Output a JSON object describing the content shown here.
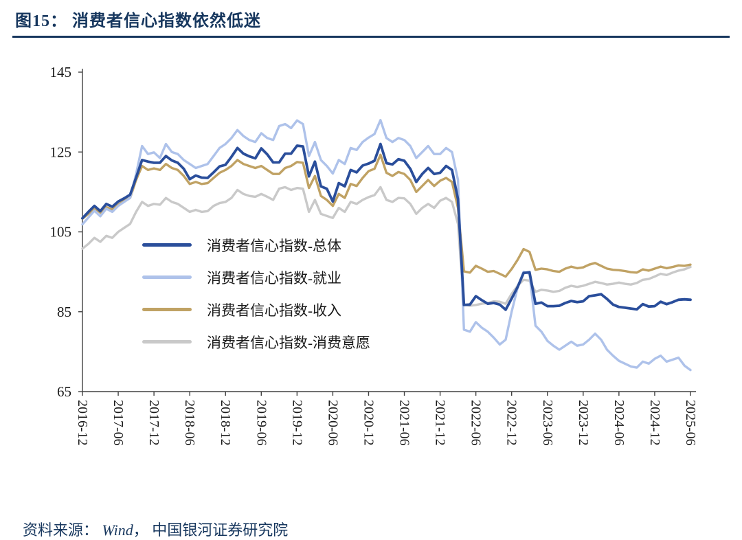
{
  "page": {
    "title": "图15： 消费者信心指数依然低迷",
    "source_prefix": "资料来源： ",
    "source_wind": "Wind",
    "source_suffix": "， 中国银河证券研究院",
    "colors": {
      "navy": "#17375E",
      "axis": "#404040",
      "text": "#1A1A1A"
    }
  },
  "chart_data": {
    "type": "line",
    "title": "消费者信心指数依然低迷",
    "grid": false,
    "legend_position": "inside-left",
    "ylim": [
      65,
      145
    ],
    "y_ticks": [
      145,
      125,
      105,
      85,
      65
    ],
    "x_tick_every_n_months": 6,
    "x_tick_labels": [
      "2016-12",
      "2017-06",
      "2017-12",
      "2018-06",
      "2018-12",
      "2019-06",
      "2019-12",
      "2020-06",
      "2020-12",
      "2021-06",
      "2021-12",
      "2022-06",
      "2022-12",
      "2023-06",
      "2023-12",
      "2024-06",
      "2024-12",
      "2025-06"
    ],
    "series": [
      {
        "key": "overall",
        "name": "消费者信心指数-总体",
        "color": "#2A4E9B",
        "width": 3.8,
        "values": [
          108.4,
          110.0,
          111.5,
          110.2,
          112.0,
          111.3,
          112.6,
          113.4,
          114.3,
          118.6,
          123.0,
          122.6,
          122.3,
          122.3,
          124.0,
          122.9,
          122.3,
          120.8,
          118.2,
          119.1,
          118.6,
          118.5,
          119.9,
          121.4,
          121.8,
          123.8,
          126.0,
          124.6,
          123.9,
          123.4,
          125.9,
          124.4,
          122.4,
          122.4,
          124.6,
          124.6,
          126.6,
          126.4,
          118.9,
          122.6,
          116.4,
          115.8,
          112.6,
          117.2,
          116.4,
          120.5,
          119.9,
          121.6,
          122.1,
          122.8,
          127.0,
          122.2,
          121.9,
          123.2,
          122.8,
          120.8,
          117.5,
          119.5,
          121.0,
          119.5,
          119.8,
          121.5,
          120.5,
          113.2,
          86.7,
          86.8,
          88.9,
          87.9,
          87.0,
          87.2,
          86.8,
          85.5,
          88.3,
          91.2,
          94.7,
          94.9,
          87.0,
          87.3,
          86.4,
          86.4,
          86.5,
          87.2,
          87.7,
          87.4,
          87.6,
          88.9,
          89.1,
          89.4,
          88.2,
          86.8,
          86.2,
          86.0,
          85.8,
          85.6,
          86.9,
          86.3,
          86.4,
          87.5,
          86.9,
          87.4,
          88.0,
          88.1,
          88.0
        ]
      },
      {
        "key": "employment",
        "name": "消费者信心指数-就业",
        "color": "#AEC2EA",
        "width": 3.4,
        "values": [
          106.9,
          108.6,
          110.3,
          108.9,
          110.8,
          110.0,
          111.5,
          112.5,
          113.5,
          119.5,
          126.5,
          124.5,
          124.9,
          123.5,
          127.0,
          125.0,
          124.5,
          123.0,
          122.0,
          121.0,
          121.5,
          122.0,
          124.0,
          126.0,
          127.0,
          128.5,
          130.5,
          129.0,
          128.0,
          127.5,
          129.7,
          128.5,
          128.0,
          131.5,
          132.0,
          131.0,
          132.9,
          132.0,
          124.0,
          127.5,
          123.0,
          121.5,
          119.6,
          123.0,
          122.0,
          126.0,
          125.5,
          127.5,
          128.6,
          129.5,
          133.0,
          128.5,
          127.5,
          128.5,
          128.0,
          126.5,
          123.5,
          125.0,
          126.5,
          124.5,
          124.5,
          126.0,
          125.0,
          118.0,
          80.5,
          80.0,
          82.4,
          81.0,
          80.0,
          78.5,
          76.8,
          78.0,
          85.0,
          91.0,
          95.0,
          94.5,
          81.5,
          80.0,
          77.7,
          76.5,
          75.5,
          76.5,
          77.5,
          76.5,
          76.8,
          78.0,
          79.5,
          78.0,
          75.5,
          74.0,
          72.7,
          72.0,
          71.3,
          71.0,
          72.5,
          72.0,
          73.2,
          74.0,
          72.5,
          73.0,
          73.5,
          71.5,
          70.4
        ]
      },
      {
        "key": "income",
        "name": "消费者信心指数-收入",
        "color": "#C0A264",
        "width": 3.4,
        "values": [
          108.3,
          109.5,
          111.0,
          109.8,
          111.2,
          110.6,
          111.8,
          112.8,
          113.5,
          118.0,
          121.5,
          120.5,
          120.9,
          120.5,
          122.0,
          121.0,
          120.5,
          119.0,
          117.0,
          117.5,
          117.0,
          117.2,
          118.5,
          119.8,
          120.5,
          121.5,
          123.0,
          122.0,
          121.5,
          121.0,
          121.5,
          120.5,
          119.5,
          119.5,
          121.0,
          121.5,
          122.5,
          122.3,
          116.0,
          119.0,
          114.0,
          113.0,
          111.5,
          114.5,
          113.5,
          117.0,
          116.5,
          118.5,
          120.2,
          120.8,
          124.3,
          119.8,
          119.0,
          120.0,
          119.5,
          118.0,
          115.0,
          116.5,
          118.0,
          116.5,
          117.8,
          118.5,
          117.5,
          111.0,
          95.1,
          94.8,
          96.5,
          95.8,
          95.0,
          95.2,
          94.5,
          93.8,
          95.7,
          98.0,
          100.7,
          100.0,
          95.5,
          95.8,
          95.6,
          95.2,
          95.0,
          95.8,
          96.3,
          95.9,
          96.1,
          96.8,
          97.2,
          96.5,
          95.8,
          95.5,
          95.4,
          95.2,
          94.9,
          94.8,
          95.6,
          95.3,
          95.8,
          96.3,
          95.9,
          96.2,
          96.6,
          96.5,
          96.8
        ]
      },
      {
        "key": "willingness",
        "name": "消费者信心指数-消费意愿",
        "color": "#C9C9C9",
        "width": 3.4,
        "values": [
          100.8,
          102.0,
          103.5,
          102.5,
          104.0,
          103.5,
          105.0,
          106.0,
          107.0,
          110.0,
          112.5,
          111.5,
          112.0,
          111.8,
          113.5,
          112.5,
          112.0,
          111.0,
          110.0,
          110.5,
          110.0,
          110.2,
          111.5,
          112.2,
          112.5,
          113.5,
          115.5,
          114.5,
          114.0,
          113.8,
          114.5,
          113.8,
          113.0,
          115.8,
          116.2,
          115.5,
          116.0,
          115.8,
          110.0,
          113.0,
          109.5,
          109.0,
          108.5,
          111.0,
          110.0,
          112.5,
          112.0,
          113.0,
          113.7,
          114.2,
          116.2,
          113.0,
          112.5,
          113.5,
          113.4,
          112.0,
          109.5,
          111.0,
          112.0,
          111.0,
          112.8,
          113.5,
          112.5,
          107.0,
          86.8,
          86.5,
          86.7,
          87.0,
          87.2,
          87.6,
          87.5,
          87.0,
          89.5,
          91.5,
          93.0,
          92.8,
          90.0,
          90.5,
          90.3,
          90.0,
          90.2,
          91.0,
          91.5,
          91.2,
          91.5,
          92.0,
          92.5,
          92.2,
          91.8,
          92.0,
          92.3,
          92.0,
          91.8,
          92.2,
          93.0,
          93.2,
          93.8,
          94.5,
          94.2,
          94.8,
          95.3,
          95.6,
          96.2
        ]
      }
    ]
  }
}
